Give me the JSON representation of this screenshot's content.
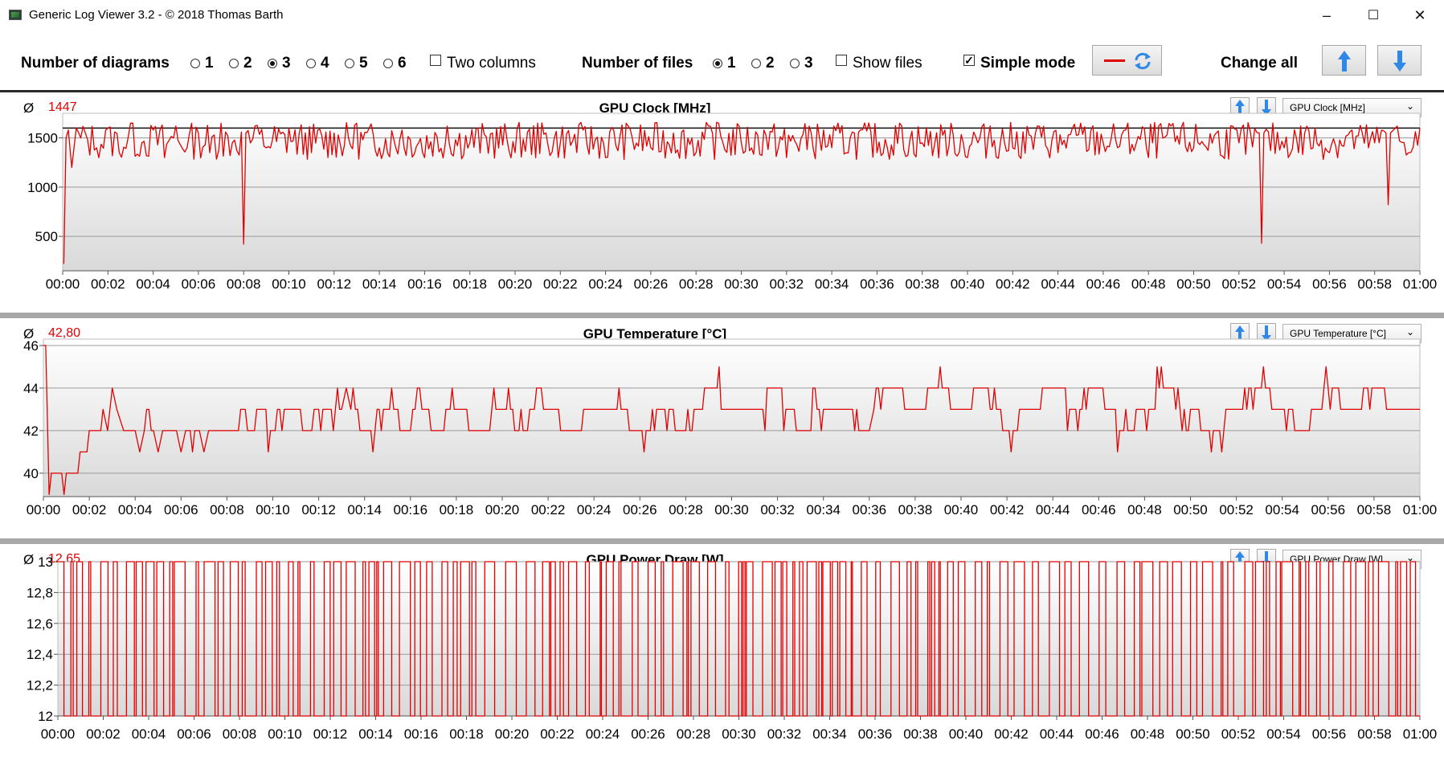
{
  "window": {
    "title": "Generic Log Viewer 3.2 - © 2018 Thomas Barth",
    "minimize": "–",
    "maximize": "☐",
    "close": "✕"
  },
  "toolbar": {
    "num_diagrams_label": "Number of diagrams",
    "diagram_options": [
      "1",
      "2",
      "3",
      "4",
      "5",
      "6"
    ],
    "diagram_selected": "3",
    "two_columns_label": "Two columns",
    "two_columns_checked": false,
    "num_files_label": "Number of files",
    "file_options": [
      "1",
      "2",
      "3"
    ],
    "file_selected": "1",
    "show_files_label": "Show files",
    "show_files_checked": false,
    "simple_mode_label": "Simple mode",
    "simple_mode_checked": true,
    "change_all_label": "Change all",
    "accent_color": "#e00000",
    "arrow_color": "#2e88e8"
  },
  "x_ticks": [
    "00:00",
    "00:02",
    "00:04",
    "00:06",
    "00:08",
    "00:10",
    "00:12",
    "00:14",
    "00:16",
    "00:18",
    "00:20",
    "00:22",
    "00:24",
    "00:26",
    "00:28",
    "00:30",
    "00:32",
    "00:34",
    "00:36",
    "00:38",
    "00:40",
    "00:42",
    "00:44",
    "00:46",
    "00:48",
    "00:50",
    "00:52",
    "00:54",
    "00:56",
    "00:58",
    "01:00"
  ],
  "panels": [
    {
      "avg_symbol": "Ø",
      "avg": "1447",
      "title": "GPU Clock [MHz]",
      "select_value": "GPU Clock [MHz]",
      "y_ticks": [
        "1500",
        "1000",
        "500"
      ],
      "chart_data": {
        "type": "line",
        "title": "GPU Clock [MHz]",
        "x_range_minutes": [
          0,
          60
        ],
        "ylim": [
          150,
          1750
        ],
        "y_tick_values": [
          500,
          1000,
          1500
        ],
        "grid": true,
        "reference_line": 1600,
        "series": [
          {
            "color": "#e00000",
            "points": [
              [
                0.05,
                220
              ],
              [
                0.15,
                1500
              ],
              [
                0.25,
                1580
              ],
              [
                0.4,
                1200
              ],
              [
                0.6,
                1600
              ],
              [
                1.0,
                1550
              ],
              [
                1.5,
                1400
              ],
              [
                2,
                1600
              ],
              [
                2.5,
                1350
              ],
              [
                3,
                1650
              ],
              [
                3.5,
                1450
              ],
              [
                4,
                1580
              ],
              [
                4.5,
                1300
              ],
              [
                5,
                1620
              ],
              [
                5.5,
                1400
              ],
              [
                6,
                1550
              ],
              [
                6.5,
                1350
              ],
              [
                7,
                1650
              ],
              [
                7.5,
                1450
              ],
              [
                7.9,
                1560
              ],
              [
                8.0,
                420
              ],
              [
                8.1,
                1550
              ],
              [
                8.5,
                1620
              ],
              [
                9,
                1400
              ],
              [
                10,
                1600
              ],
              [
                11,
                1350
              ],
              [
                12,
                1550
              ],
              [
                13,
                1650
              ],
              [
                14,
                1400
              ],
              [
                15,
                1580
              ],
              [
                16,
                1300
              ],
              [
                17,
                1620
              ],
              [
                18,
                1450
              ],
              [
                19,
                1550
              ],
              [
                20,
                1350
              ],
              [
                21,
                1650
              ],
              [
                22,
                1450
              ],
              [
                23,
                1580
              ],
              [
                24,
                1300
              ],
              [
                25,
                1620
              ],
              [
                26,
                1400
              ],
              [
                27,
                1550
              ],
              [
                28,
                1350
              ],
              [
                29,
                1650
              ],
              [
                30,
                1450
              ],
              [
                31,
                1580
              ],
              [
                32,
                1300
              ],
              [
                33,
                1620
              ],
              [
                34,
                1400
              ],
              [
                35,
                1550
              ],
              [
                36,
                1350
              ],
              [
                37,
                1650
              ],
              [
                38,
                1450
              ],
              [
                39,
                1580
              ],
              [
                40,
                1300
              ],
              [
                41,
                1620
              ],
              [
                42,
                1400
              ],
              [
                43,
                1550
              ],
              [
                44,
                1350
              ],
              [
                45,
                1650
              ],
              [
                46,
                1450
              ],
              [
                47,
                1580
              ],
              [
                48,
                1300
              ],
              [
                49,
                1620
              ],
              [
                50,
                1400
              ],
              [
                51,
                1550
              ],
              [
                52,
                1450
              ],
              [
                52.9,
                1550
              ],
              [
                53.0,
                430
              ],
              [
                53.1,
                1550
              ],
              [
                54,
                1400
              ],
              [
                55,
                1620
              ],
              [
                56,
                1350
              ],
              [
                57,
                1580
              ],
              [
                58,
                1450
              ],
              [
                58.5,
                1550
              ],
              [
                58.6,
                820
              ],
              [
                58.7,
                1550
              ],
              [
                59,
                1620
              ],
              [
                59.5,
                1350
              ],
              [
                60,
                1600
              ]
            ]
          }
        ]
      }
    },
    {
      "avg_symbol": "Ø",
      "avg": "42,80",
      "title": "GPU Temperature [°C]",
      "select_value": "GPU Temperature [°C]",
      "y_ticks": [
        "46",
        "44",
        "42",
        "40"
      ],
      "chart_data": {
        "type": "line",
        "title": "GPU Temperature [°C]",
        "x_range_minutes": [
          0,
          60
        ],
        "ylim": [
          38.9,
          46.3
        ],
        "y_tick_values": [
          40,
          42,
          44,
          46
        ],
        "grid": true,
        "series": [
          {
            "color": "#e00000",
            "points": [
              [
                0,
                46
              ],
              [
                0.1,
                46
              ],
              [
                0.25,
                39
              ],
              [
                0.35,
                40
              ],
              [
                0.8,
                40
              ],
              [
                0.9,
                39
              ],
              [
                1.0,
                40
              ],
              [
                1.5,
                40
              ],
              [
                1.6,
                41
              ],
              [
                1.9,
                41
              ],
              [
                2.0,
                42
              ],
              [
                2.5,
                42
              ],
              [
                2.6,
                43
              ],
              [
                2.8,
                42
              ],
              [
                3.0,
                44
              ],
              [
                3.2,
                43
              ],
              [
                3.5,
                42
              ],
              [
                4,
                42
              ],
              [
                4.2,
                41
              ],
              [
                4.4,
                42
              ],
              [
                4.8,
                42
              ],
              [
                5,
                41
              ],
              [
                5.2,
                42
              ],
              [
                5.8,
                42
              ],
              [
                6,
                41
              ],
              [
                6.2,
                42
              ],
              [
                6.8,
                42
              ],
              [
                7,
                41
              ],
              [
                7.2,
                42
              ],
              [
                8,
                42
              ],
              [
                8.5,
                42
              ],
              [
                8.6,
                43
              ],
              [
                9,
                42
              ],
              [
                9.5,
                43
              ],
              [
                10,
                42
              ],
              [
                10.5,
                43
              ],
              [
                11,
                43
              ],
              [
                11.5,
                42
              ],
              [
                12,
                43
              ],
              [
                13,
                43
              ],
              [
                13.2,
                44
              ],
              [
                13.4,
                43
              ],
              [
                14,
                42
              ],
              [
                15,
                43
              ],
              [
                16,
                42
              ],
              [
                16.3,
                44
              ],
              [
                16.6,
                43
              ],
              [
                17,
                42
              ],
              [
                18,
                43
              ],
              [
                19,
                42
              ],
              [
                20,
                43
              ],
              [
                21,
                42
              ],
              [
                21.5,
                44
              ],
              [
                22,
                43
              ],
              [
                23,
                42
              ],
              [
                24,
                43
              ],
              [
                25,
                43
              ],
              [
                26,
                42
              ],
              [
                27,
                43
              ],
              [
                28,
                42
              ],
              [
                29,
                44
              ],
              [
                30,
                43
              ],
              [
                31,
                43
              ],
              [
                32,
                44
              ],
              [
                33,
                42
              ],
              [
                34,
                43
              ],
              [
                35,
                43
              ],
              [
                36,
                42
              ],
              [
                36.2,
                43
              ],
              [
                37,
                44
              ],
              [
                38,
                43
              ],
              [
                39,
                44
              ],
              [
                40,
                43
              ],
              [
                41,
                44
              ],
              [
                42,
                42
              ],
              [
                43,
                43
              ],
              [
                44,
                44
              ],
              [
                45,
                43
              ],
              [
                46,
                44
              ],
              [
                47,
                42
              ],
              [
                48,
                43
              ],
              [
                49,
                44
              ],
              [
                50,
                43
              ],
              [
                51,
                42
              ],
              [
                52,
                43
              ],
              [
                53,
                44
              ],
              [
                54,
                43
              ],
              [
                55,
                42
              ],
              [
                56,
                44
              ],
              [
                57,
                43
              ],
              [
                58,
                44
              ],
              [
                59,
                43
              ],
              [
                60,
                43
              ]
            ]
          }
        ]
      }
    },
    {
      "avg_symbol": "Ø",
      "avg": "12,65",
      "title": "GPU Power Draw [W]",
      "select_value": "GPU Power Draw [W]",
      "y_ticks": [
        "13",
        "12,8",
        "12,6",
        "12,4",
        "12,2",
        "12"
      ],
      "chart_data": {
        "type": "line",
        "title": "GPU Power Draw [W]",
        "x_range_minutes": [
          0,
          60
        ],
        "ylim": [
          12,
          13
        ],
        "y_tick_values": [
          12,
          12.2,
          12.4,
          12.6,
          12.8,
          13
        ],
        "grid": true,
        "values_alternate_between": [
          12,
          13
        ],
        "series": [
          {
            "color": "#e00000",
            "points": []
          }
        ]
      }
    }
  ]
}
